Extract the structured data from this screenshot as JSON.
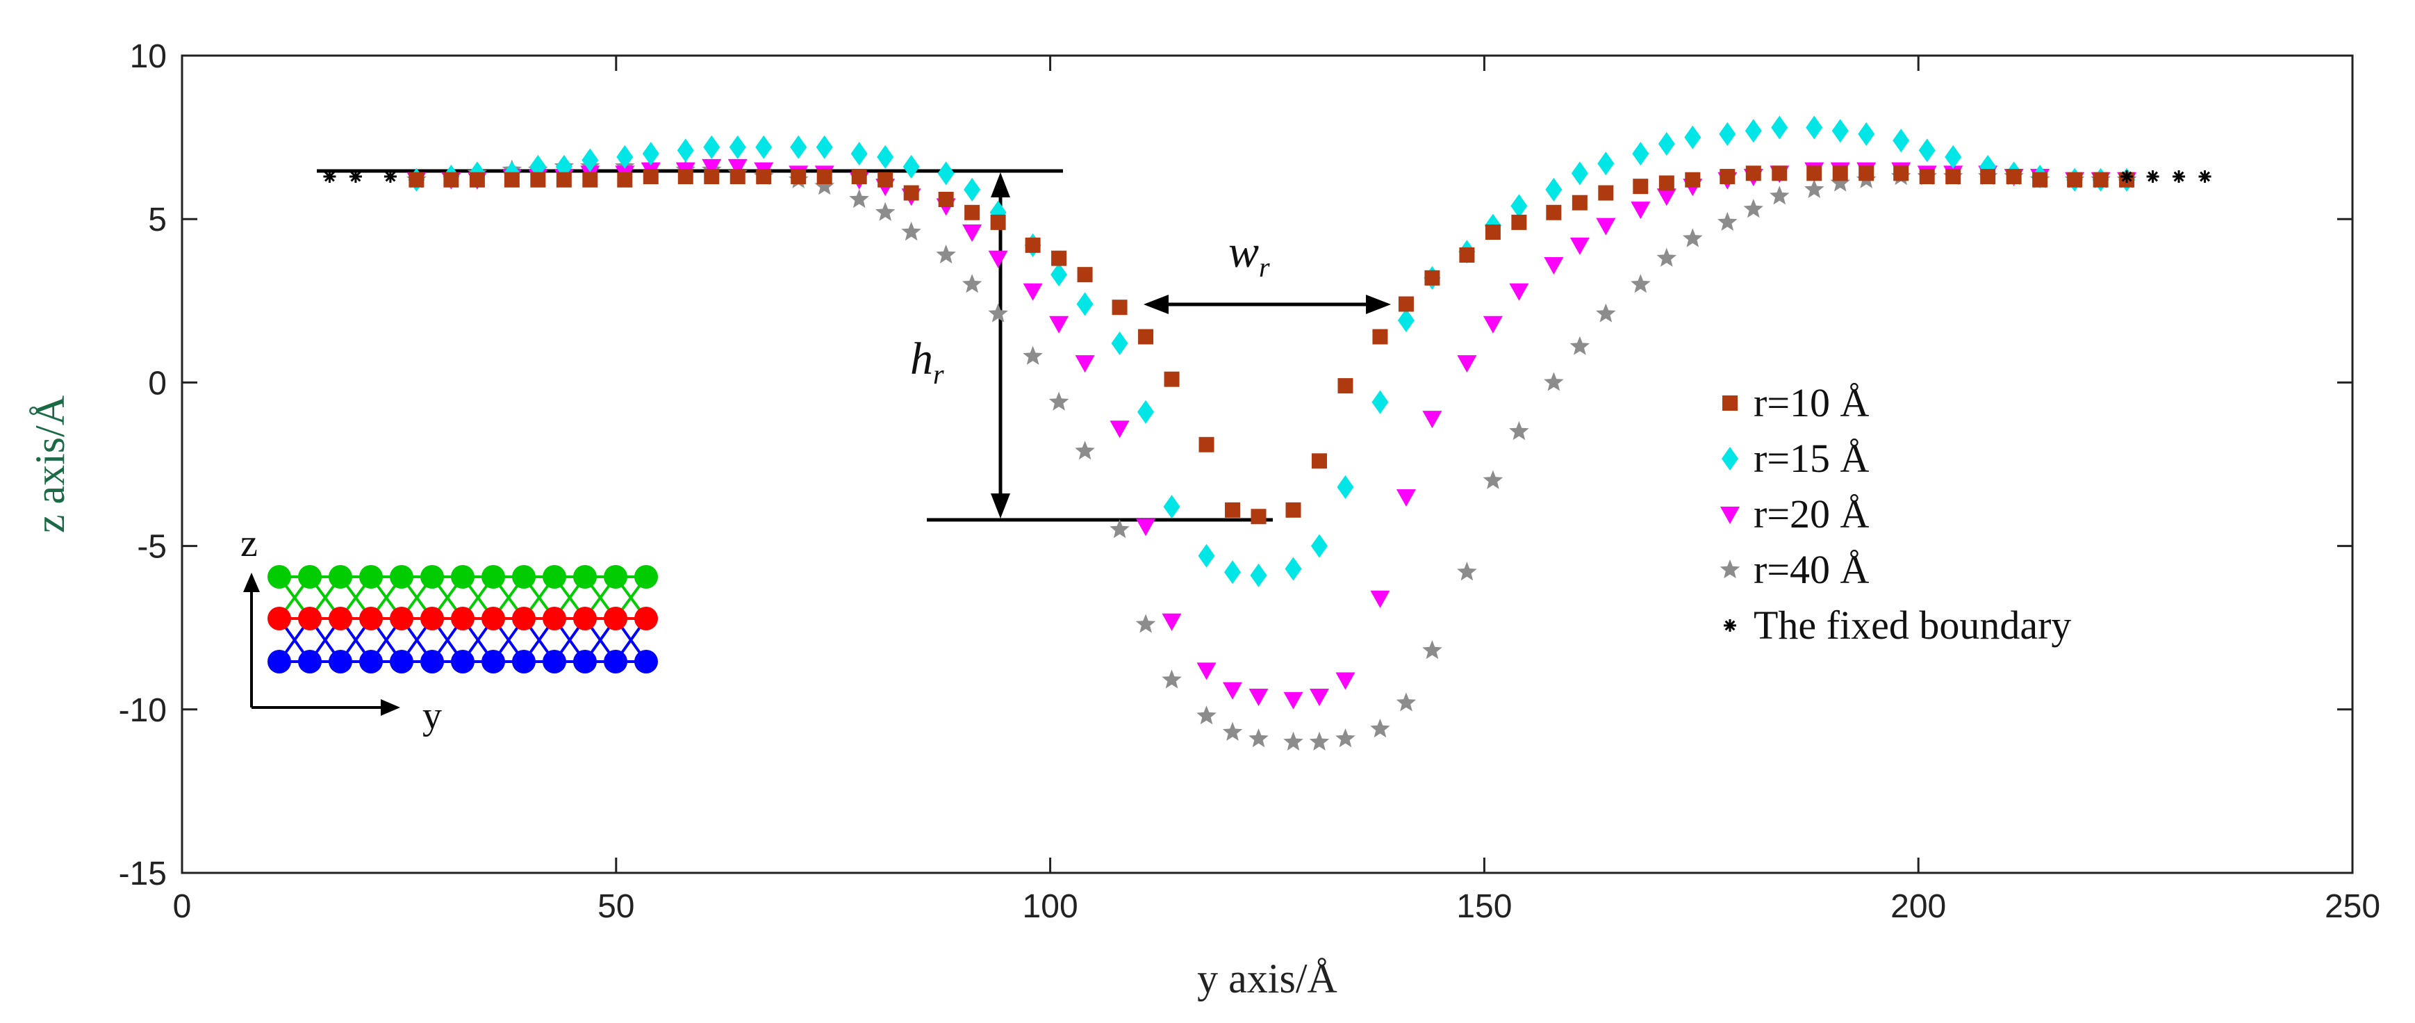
{
  "chart_data": {
    "type": "scatter",
    "title": "",
    "xlabel": "y axis/Å",
    "ylabel": "z axis/Å",
    "xlim": [
      0,
      250
    ],
    "ylim": [
      -15,
      10
    ],
    "xticks": [
      0,
      50,
      100,
      150,
      200,
      250
    ],
    "yticks": [
      10,
      5,
      0,
      -5,
      -10,
      -15
    ],
    "xtick_labels": [
      "0",
      "50",
      "100",
      "150",
      "200",
      "250"
    ],
    "ytick_labels": [
      "10",
      "5",
      "0",
      "-5",
      "-10",
      "-15"
    ],
    "grid": false,
    "legend_position": "right",
    "series": [
      {
        "name": "r=10 Å",
        "marker": "square",
        "color": "#b03a10",
        "x": [
          27,
          31,
          34,
          38,
          41,
          44,
          47,
          51,
          54,
          58,
          61,
          64,
          67,
          71,
          74,
          78,
          81,
          84,
          88,
          91,
          94,
          98,
          101,
          104,
          108,
          111,
          114,
          118,
          121,
          124,
          128,
          131,
          134,
          138,
          141,
          144,
          148,
          151,
          154,
          158,
          161,
          164,
          168,
          171,
          174,
          178,
          181,
          184,
          188,
          191,
          194,
          198,
          201,
          204,
          208,
          211,
          214,
          218,
          221,
          224
        ],
        "y": [
          6.2,
          6.2,
          6.2,
          6.2,
          6.2,
          6.2,
          6.2,
          6.2,
          6.3,
          6.3,
          6.3,
          6.3,
          6.3,
          6.3,
          6.3,
          6.3,
          6.2,
          5.8,
          5.6,
          5.2,
          4.9,
          4.2,
          3.8,
          3.3,
          2.3,
          1.4,
          0.1,
          -1.9,
          -3.9,
          -4.1,
          -3.9,
          -2.4,
          -0.1,
          1.4,
          2.4,
          3.2,
          3.9,
          4.6,
          4.9,
          5.2,
          5.5,
          5.8,
          6.0,
          6.1,
          6.2,
          6.3,
          6.4,
          6.4,
          6.4,
          6.4,
          6.4,
          6.4,
          6.3,
          6.3,
          6.3,
          6.3,
          6.2,
          6.2,
          6.2,
          6.2
        ]
      },
      {
        "name": "r=15 Å",
        "marker": "diamond",
        "color": "#00e5e5",
        "x": [
          27,
          31,
          34,
          38,
          41,
          44,
          47,
          51,
          54,
          58,
          61,
          64,
          67,
          71,
          74,
          78,
          81,
          84,
          88,
          91,
          94,
          98,
          101,
          104,
          108,
          111,
          114,
          118,
          121,
          124,
          128,
          131,
          134,
          138,
          141,
          144,
          148,
          151,
          154,
          158,
          161,
          164,
          168,
          171,
          174,
          178,
          181,
          184,
          188,
          191,
          194,
          198,
          201,
          204,
          208,
          211,
          214,
          218,
          221,
          224
        ],
        "y": [
          6.2,
          6.3,
          6.4,
          6.4,
          6.6,
          6.6,
          6.8,
          6.9,
          7.0,
          7.1,
          7.2,
          7.2,
          7.2,
          7.2,
          7.2,
          7.0,
          6.9,
          6.6,
          6.4,
          5.9,
          5.2,
          4.2,
          3.3,
          2.4,
          1.2,
          -0.9,
          -3.8,
          -5.3,
          -5.8,
          -5.9,
          -5.7,
          -5.0,
          -3.2,
          -0.6,
          1.9,
          3.2,
          4.0,
          4.8,
          5.4,
          5.9,
          6.4,
          6.7,
          7.0,
          7.3,
          7.5,
          7.6,
          7.7,
          7.8,
          7.8,
          7.7,
          7.6,
          7.4,
          7.1,
          6.9,
          6.6,
          6.4,
          6.3,
          6.2,
          6.2,
          6.2
        ]
      },
      {
        "name": "r=20 Å",
        "marker": "triangle-down",
        "color": "#ff00ff",
        "x": [
          27,
          31,
          34,
          38,
          41,
          44,
          47,
          51,
          54,
          58,
          61,
          64,
          67,
          71,
          74,
          78,
          81,
          84,
          88,
          91,
          94,
          98,
          101,
          104,
          108,
          111,
          114,
          118,
          121,
          124,
          128,
          131,
          134,
          138,
          141,
          144,
          148,
          151,
          154,
          158,
          161,
          164,
          168,
          171,
          174,
          178,
          181,
          184,
          188,
          191,
          194,
          198,
          201,
          204,
          208,
          211,
          214,
          218,
          221,
          224
        ],
        "y": [
          6.2,
          6.2,
          6.2,
          6.3,
          6.3,
          6.3,
          6.4,
          6.4,
          6.5,
          6.5,
          6.6,
          6.6,
          6.5,
          6.4,
          6.4,
          6.2,
          6.0,
          5.7,
          5.4,
          4.6,
          3.8,
          2.8,
          1.8,
          0.6,
          -1.4,
          -4.4,
          -7.3,
          -8.8,
          -9.4,
          -9.6,
          -9.7,
          -9.6,
          -9.1,
          -6.6,
          -3.5,
          -1.1,
          0.6,
          1.8,
          2.8,
          3.6,
          4.2,
          4.8,
          5.3,
          5.7,
          6.0,
          6.2,
          6.3,
          6.4,
          6.5,
          6.5,
          6.5,
          6.5,
          6.4,
          6.4,
          6.4,
          6.3,
          6.3,
          6.2,
          6.2,
          6.2
        ]
      },
      {
        "name": "r=40 Å",
        "marker": "star",
        "color": "#8c8c8c",
        "x": [
          27,
          31,
          34,
          38,
          41,
          44,
          47,
          51,
          54,
          58,
          61,
          64,
          67,
          71,
          74,
          78,
          81,
          84,
          88,
          91,
          94,
          98,
          101,
          104,
          108,
          111,
          114,
          118,
          121,
          124,
          128,
          131,
          134,
          138,
          141,
          144,
          148,
          151,
          154,
          158,
          161,
          164,
          168,
          171,
          174,
          178,
          181,
          184,
          188,
          191,
          194,
          198,
          201,
          204,
          208,
          211,
          214,
          218,
          221,
          224
        ],
        "y": [
          6.2,
          6.3,
          6.4,
          6.5,
          6.5,
          6.6,
          6.6,
          6.6,
          6.6,
          6.5,
          6.5,
          6.4,
          6.3,
          6.2,
          6.0,
          5.6,
          5.2,
          4.6,
          3.9,
          3.0,
          2.1,
          0.8,
          -0.6,
          -2.1,
          -4.5,
          -7.4,
          -9.1,
          -10.2,
          -10.7,
          -10.9,
          -11.0,
          -11.0,
          -10.9,
          -10.6,
          -9.8,
          -8.2,
          -5.8,
          -3.0,
          -1.5,
          0.0,
          1.1,
          2.1,
          3.0,
          3.8,
          4.4,
          4.9,
          5.3,
          5.7,
          5.9,
          6.1,
          6.2,
          6.3,
          6.3,
          6.3,
          6.3,
          6.3,
          6.2,
          6.2,
          6.2,
          6.2
        ]
      },
      {
        "name": "The fixed boundary",
        "marker": "asterisk",
        "color": "#000000",
        "x": [
          17,
          20,
          24,
          224,
          227,
          230,
          233
        ],
        "y": [
          6.3,
          6.3,
          6.3,
          6.3,
          6.3,
          6.3,
          6.3
        ]
      }
    ],
    "annotations": [
      {
        "text": "w",
        "subscript": "r"
      },
      {
        "text": "h",
        "subscript": "r"
      }
    ],
    "inset": {
      "axis_z": "z",
      "axis_y": "y"
    }
  },
  "colors": {
    "atom_top": "#00cc00",
    "atom_middle": "#ff0000",
    "atom_bottom": "#0000ff",
    "ylabel_color": "#1a6b45",
    "xlabel_color": "#222222"
  }
}
